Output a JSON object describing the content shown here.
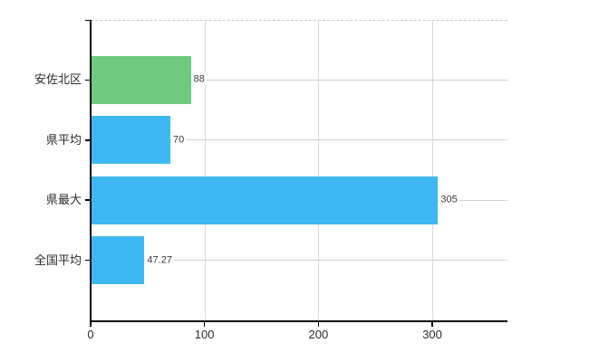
{
  "chart_data": {
    "type": "bar",
    "orientation": "horizontal",
    "title": "",
    "categories": [
      "安佐北区",
      "県平均",
      "県最大",
      "全国平均"
    ],
    "values": [
      88,
      70,
      305,
      47.27
    ],
    "value_labels": [
      "88",
      "70",
      "305",
      "47.27"
    ],
    "bar_colors": [
      "#6fc97f",
      "#3eb7f2",
      "#3eb7f2",
      "#3eb7f2"
    ],
    "x_ticks": [
      0,
      100,
      200,
      300
    ],
    "x_tick_labels": [
      "0",
      "100",
      "200",
      "300"
    ],
    "xlim": [
      0,
      366
    ],
    "xlabel": "",
    "ylabel": "",
    "grid": "on",
    "legend": "none",
    "colors": {
      "bar_blue": "#3eb7f2",
      "bar_green": "#6fc97f",
      "axis": "#000000",
      "vertical_gridline": "#d9d9d9",
      "horizontal_gridline": "#ccd4cc",
      "plot_top_border": "#c9c9c9",
      "value_label_text": "#3a3a3a",
      "category_label_text": "#2b2b2b",
      "tick_label_text": "#2b2b2b",
      "background": "#ffffff"
    }
  }
}
